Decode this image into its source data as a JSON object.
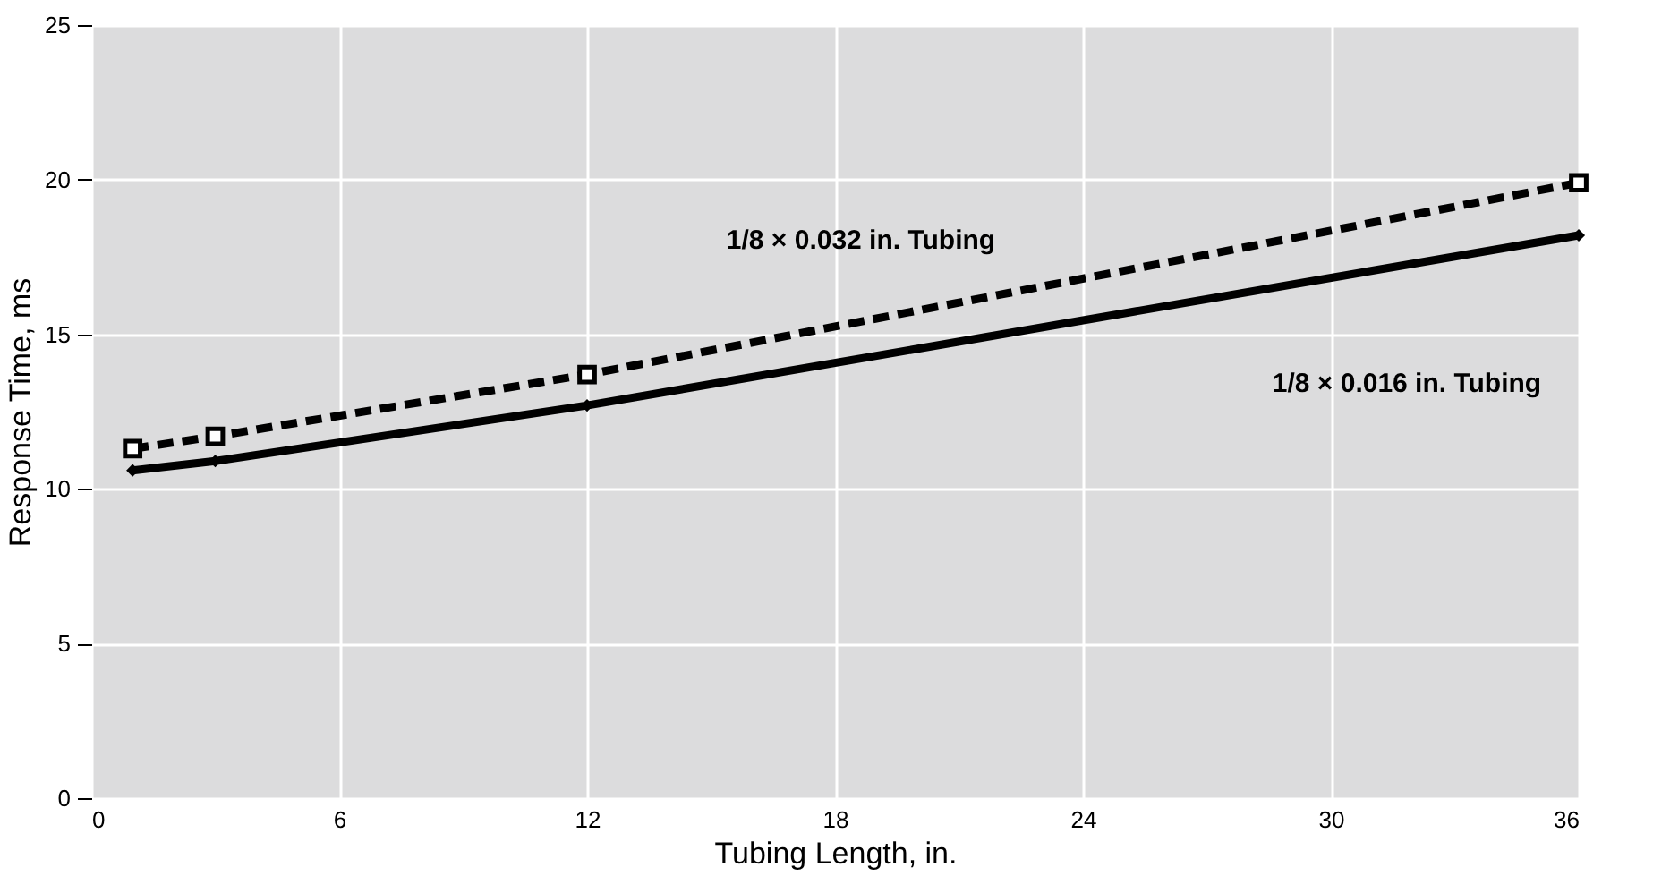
{
  "chart_data": {
    "type": "line",
    "xlabel": "Tubing Length, in.",
    "ylabel": "Response Time, ms",
    "xlim": [
      0,
      36
    ],
    "xticks": [
      0,
      6,
      12,
      18,
      24,
      30,
      36
    ],
    "ylim": [
      0,
      25
    ],
    "yticks": [
      0,
      5,
      10,
      15,
      20,
      25
    ],
    "grid": true,
    "x": [
      1,
      3,
      12,
      36
    ],
    "series": [
      {
        "name": "1/8 × 0.032 in. Tubing",
        "color": "#000000",
        "values": [
          11.3,
          11.7,
          13.7,
          19.9
        ],
        "marker": "square",
        "line_style": "dashed"
      },
      {
        "name": "1/8 × 0.016 in. Tubing",
        "color": "#000000",
        "values": [
          10.6,
          10.9,
          12.7,
          18.2
        ],
        "marker": "diamond",
        "line_style": "solid"
      }
    ]
  }
}
